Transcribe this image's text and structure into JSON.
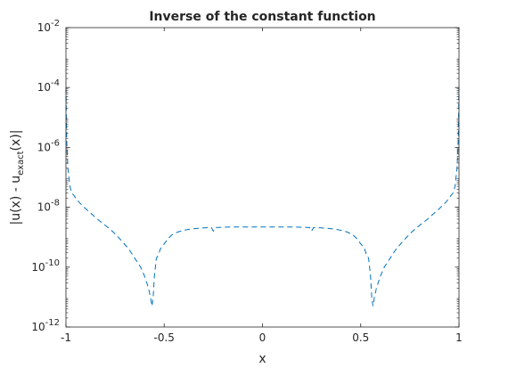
{
  "chart_data": {
    "type": "line",
    "title": "Inverse of the constant function",
    "xlabel": "x",
    "ylabel": {
      "prefix": "|u(x) - u",
      "subscript": "exact",
      "suffix": "(x)|"
    },
    "xlim": [
      -1,
      1
    ],
    "ylim": [
      1e-12,
      0.01
    ],
    "yscale": "log",
    "grid": false,
    "x_ticks": [
      {
        "value": -1,
        "label": "-1"
      },
      {
        "value": -0.5,
        "label": "-0.5"
      },
      {
        "value": 0,
        "label": "0"
      },
      {
        "value": 0.5,
        "label": "0.5"
      },
      {
        "value": 1,
        "label": "1"
      }
    ],
    "y_ticks": [
      {
        "value": 1e-12,
        "base": "10",
        "exp": "-12"
      },
      {
        "value": 1e-10,
        "base": "10",
        "exp": "-10"
      },
      {
        "value": 1e-08,
        "base": "10",
        "exp": "-8"
      },
      {
        "value": 1e-06,
        "base": "10",
        "exp": "-6"
      },
      {
        "value": 0.0001,
        "base": "10",
        "exp": "-4"
      },
      {
        "value": 0.01,
        "base": "10",
        "exp": "-2"
      }
    ],
    "series": [
      {
        "color": "#0072BD",
        "style": "dashed",
        "x": [
          -1.0,
          -0.998,
          -0.995,
          -0.99,
          -0.985,
          -0.98,
          -0.97,
          -0.96,
          -0.95,
          -0.93,
          -0.9,
          -0.87,
          -0.84,
          -0.8,
          -0.76,
          -0.72,
          -0.68,
          -0.65,
          -0.62,
          -0.6,
          -0.58,
          -0.57,
          -0.562,
          -0.556,
          -0.55,
          -0.545,
          -0.54,
          -0.53,
          -0.52,
          -0.51,
          -0.5,
          -0.48,
          -0.46,
          -0.43,
          -0.4,
          -0.37,
          -0.34,
          -0.3,
          -0.26,
          -0.25,
          -0.24,
          -0.2,
          -0.15,
          -0.1,
          -0.05,
          0.0,
          0.05,
          0.1,
          0.15,
          0.2,
          0.24,
          0.25,
          0.26,
          0.3,
          0.34,
          0.37,
          0.4,
          0.43,
          0.46,
          0.48,
          0.5,
          0.51,
          0.52,
          0.53,
          0.54,
          0.545,
          0.55,
          0.556,
          0.562,
          0.57,
          0.58,
          0.6,
          0.62,
          0.65,
          0.68,
          0.72,
          0.76,
          0.8,
          0.84,
          0.87,
          0.9,
          0.93,
          0.95,
          0.96,
          0.97,
          0.98,
          0.985,
          0.99,
          0.995,
          0.998,
          1.0
        ],
        "y": [
          0.0001,
          1e-05,
          1e-06,
          2e-07,
          1e-07,
          5e-08,
          3e-08,
          2.5e-08,
          2e-08,
          1.4e-08,
          9e-09,
          6e-09,
          4e-09,
          2.5e-09,
          1.5e-09,
          8e-10,
          4e-10,
          2e-10,
          1e-10,
          5e-11,
          2e-11,
          1e-11,
          5e-12,
          1e-11,
          5e-11,
          1e-10,
          2e-10,
          2.5e-10,
          4e-10,
          5e-10,
          6e-10,
          9e-10,
          1.2e-09,
          1.5e-09,
          1.7e-09,
          1.85e-09,
          1.95e-09,
          2.05e-09,
          2.1e-09,
          1.6e-09,
          2.1e-09,
          2.15e-09,
          2.2e-09,
          2.2e-09,
          2.2e-09,
          2.2e-09,
          2.2e-09,
          2.2e-09,
          2.2e-09,
          2.15e-09,
          2.1e-09,
          1.6e-09,
          2.1e-09,
          2.05e-09,
          1.95e-09,
          1.85e-09,
          1.7e-09,
          1.5e-09,
          1.2e-09,
          9e-10,
          6e-10,
          5e-10,
          4e-10,
          2.5e-10,
          2e-10,
          1e-10,
          5e-11,
          1e-11,
          5e-12,
          1e-11,
          2e-11,
          5e-11,
          1e-10,
          2e-10,
          4e-10,
          8e-10,
          1.5e-09,
          2.5e-09,
          4e-09,
          6e-09,
          9e-09,
          1.4e-08,
          2e-08,
          2.5e-08,
          3e-08,
          5e-08,
          1e-07,
          2e-07,
          1e-06,
          1e-05,
          0.0001
        ]
      }
    ]
  }
}
